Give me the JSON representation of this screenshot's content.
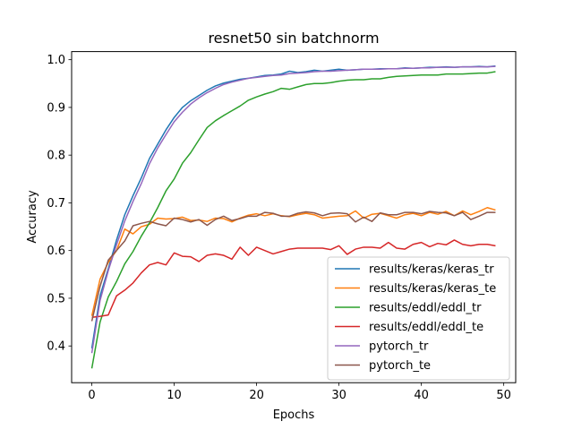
{
  "chart_data": {
    "type": "line",
    "title": "resnet50 sin batchnorm",
    "xlabel": "Epochs",
    "ylabel": "Accuracy",
    "xlim": [
      -2.45,
      51.45
    ],
    "ylim": [
      0.323,
      1.017
    ],
    "xticks": [
      0,
      10,
      20,
      30,
      40,
      50
    ],
    "yticks": [
      0.4,
      0.5,
      0.6,
      0.7,
      0.8,
      0.9,
      1.0
    ],
    "ytick_labels": [
      "0.4",
      "0.5",
      "0.6",
      "0.7",
      "0.8",
      "0.9",
      "1.0"
    ],
    "grid": false,
    "legend_position": "lower-right",
    "x": [
      0,
      1,
      2,
      3,
      4,
      5,
      6,
      7,
      8,
      9,
      10,
      11,
      12,
      13,
      14,
      15,
      16,
      17,
      18,
      19,
      20,
      21,
      22,
      23,
      24,
      25,
      26,
      27,
      28,
      29,
      30,
      31,
      32,
      33,
      34,
      35,
      36,
      37,
      38,
      39,
      40,
      41,
      42,
      43,
      44,
      45,
      46,
      47,
      48,
      49
    ],
    "series": [
      {
        "name": "results/keras/keras_tr",
        "color": "#1f77b4",
        "values": [
          0.395,
          0.505,
          0.562,
          0.622,
          0.675,
          0.715,
          0.752,
          0.793,
          0.823,
          0.853,
          0.879,
          0.9,
          0.914,
          0.925,
          0.936,
          0.945,
          0.951,
          0.955,
          0.959,
          0.961,
          0.964,
          0.967,
          0.968,
          0.97,
          0.976,
          0.973,
          0.975,
          0.978,
          0.976,
          0.978,
          0.98,
          0.978,
          0.979,
          0.98,
          0.98,
          0.981,
          0.981,
          0.981,
          0.983,
          0.982,
          0.983,
          0.984,
          0.984,
          0.985,
          0.984,
          0.985,
          0.985,
          0.986,
          0.985,
          0.987
        ]
      },
      {
        "name": "results/keras/keras_te",
        "color": "#ff7f0e",
        "values": [
          0.463,
          0.54,
          0.575,
          0.6,
          0.645,
          0.635,
          0.65,
          0.655,
          0.668,
          0.666,
          0.667,
          0.67,
          0.663,
          0.664,
          0.661,
          0.668,
          0.667,
          0.66,
          0.668,
          0.674,
          0.677,
          0.673,
          0.677,
          0.673,
          0.671,
          0.675,
          0.678,
          0.675,
          0.668,
          0.67,
          0.672,
          0.673,
          0.683,
          0.668,
          0.676,
          0.678,
          0.673,
          0.668,
          0.675,
          0.678,
          0.673,
          0.68,
          0.676,
          0.682,
          0.673,
          0.683,
          0.675,
          0.682,
          0.69,
          0.685
        ]
      },
      {
        "name": "results/eddl/eddl_tr",
        "color": "#2ca02c",
        "values": [
          0.353,
          0.45,
          0.503,
          0.535,
          0.572,
          0.598,
          0.63,
          0.658,
          0.69,
          0.725,
          0.75,
          0.783,
          0.805,
          0.832,
          0.858,
          0.872,
          0.883,
          0.893,
          0.903,
          0.915,
          0.922,
          0.928,
          0.933,
          0.94,
          0.938,
          0.943,
          0.948,
          0.95,
          0.95,
          0.952,
          0.955,
          0.957,
          0.958,
          0.958,
          0.96,
          0.96,
          0.963,
          0.965,
          0.966,
          0.967,
          0.968,
          0.968,
          0.968,
          0.97,
          0.97,
          0.97,
          0.971,
          0.972,
          0.972,
          0.975
        ]
      },
      {
        "name": "results/eddl/eddl_te",
        "color": "#d62728",
        "values": [
          0.46,
          0.462,
          0.465,
          0.505,
          0.517,
          0.532,
          0.553,
          0.57,
          0.575,
          0.57,
          0.595,
          0.588,
          0.587,
          0.577,
          0.59,
          0.593,
          0.59,
          0.582,
          0.607,
          0.59,
          0.607,
          0.6,
          0.593,
          0.598,
          0.603,
          0.605,
          0.605,
          0.605,
          0.605,
          0.602,
          0.61,
          0.592,
          0.603,
          0.607,
          0.607,
          0.605,
          0.617,
          0.605,
          0.603,
          0.613,
          0.617,
          0.608,
          0.615,
          0.612,
          0.622,
          0.613,
          0.61,
          0.613,
          0.613,
          0.61
        ]
      },
      {
        "name": "pytorch_tr",
        "color": "#9467bd",
        "values": [
          0.385,
          0.495,
          0.558,
          0.612,
          0.662,
          0.703,
          0.74,
          0.782,
          0.815,
          0.843,
          0.87,
          0.89,
          0.907,
          0.92,
          0.931,
          0.94,
          0.948,
          0.953,
          0.957,
          0.961,
          0.963,
          0.965,
          0.967,
          0.968,
          0.971,
          0.972,
          0.973,
          0.975,
          0.976,
          0.976,
          0.977,
          0.978,
          0.979,
          0.98,
          0.98,
          0.98,
          0.981,
          0.981,
          0.982,
          0.982,
          0.983,
          0.983,
          0.984,
          0.984,
          0.984,
          0.985,
          0.985,
          0.985,
          0.985,
          0.986
        ]
      },
      {
        "name": "pytorch_te",
        "color": "#8c564b",
        "values": [
          0.452,
          0.525,
          0.58,
          0.6,
          0.62,
          0.652,
          0.657,
          0.661,
          0.656,
          0.652,
          0.668,
          0.665,
          0.66,
          0.665,
          0.653,
          0.665,
          0.672,
          0.663,
          0.667,
          0.672,
          0.672,
          0.68,
          0.678,
          0.672,
          0.672,
          0.678,
          0.681,
          0.679,
          0.673,
          0.678,
          0.679,
          0.677,
          0.66,
          0.67,
          0.661,
          0.679,
          0.675,
          0.675,
          0.68,
          0.68,
          0.677,
          0.682,
          0.68,
          0.679,
          0.673,
          0.68,
          0.665,
          0.672,
          0.68,
          0.68
        ]
      }
    ]
  }
}
